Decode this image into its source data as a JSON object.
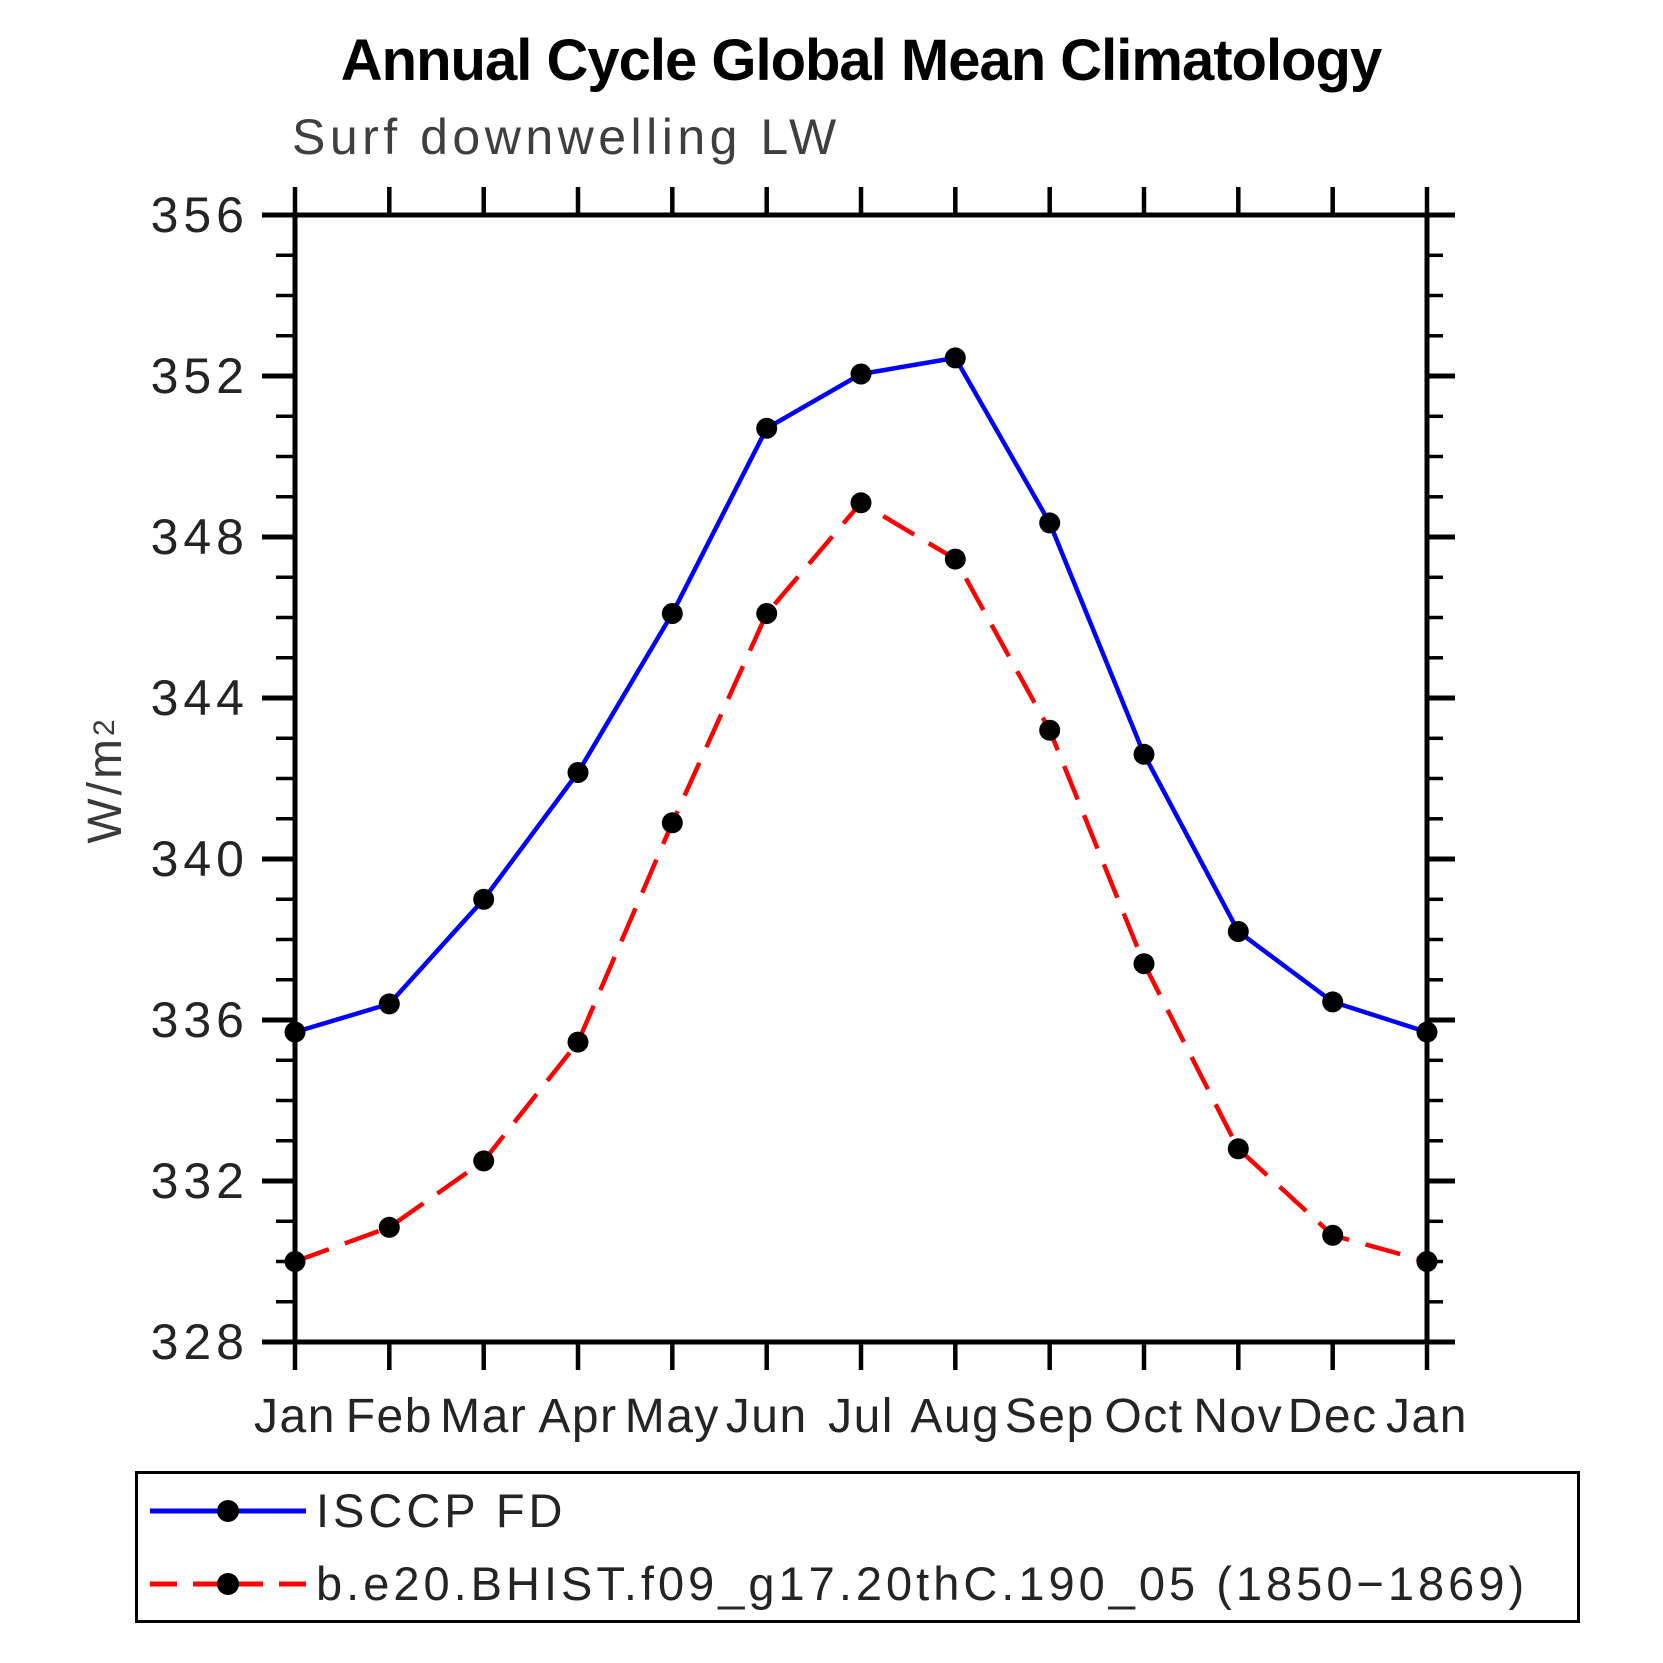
{
  "title": "Annual Cycle Global Mean Climatology",
  "subtitle": "Surf downwelling LW",
  "y_axis": {
    "label": "W/m",
    "label_superscript": "2",
    "min": 328,
    "max": 356,
    "major_ticks": [
      328,
      332,
      336,
      340,
      344,
      348,
      352,
      356
    ],
    "minor_tick_step": 1
  },
  "x_axis": {
    "categories": [
      "Jan",
      "Feb",
      "Mar",
      "Apr",
      "May",
      "Jun",
      "Jul",
      "Aug",
      "Sep",
      "Oct",
      "Nov",
      "Dec",
      "Jan"
    ]
  },
  "chart_data": {
    "type": "line",
    "title": "Annual Cycle Global Mean Climatology",
    "subtitle": "Surf downwelling LW",
    "xlabel": "",
    "ylabel": "W/m2",
    "ylim": [
      328,
      356
    ],
    "ytick_major_step": 4,
    "ytick_minor_step": 1,
    "grid": false,
    "legend_position": "bottom",
    "categories": [
      "Jan",
      "Feb",
      "Mar",
      "Apr",
      "May",
      "Jun",
      "Jul",
      "Aug",
      "Sep",
      "Oct",
      "Nov",
      "Dec",
      "Jan"
    ],
    "series": [
      {
        "name": "ISCCP FD",
        "color": "#0000ff",
        "line_style": "solid",
        "dash_pattern": "",
        "legend_dash": "",
        "marker": "circle",
        "marker_color": "#000000",
        "values": [
          335.7,
          336.4,
          339.0,
          342.15,
          346.1,
          350.7,
          352.05,
          352.45,
          348.35,
          342.6,
          338.2,
          336.45,
          335.7
        ]
      },
      {
        "name": "b.e20.BHIST.f09_g17.20thC.190_05 (1850−1869)",
        "color": "#ff0000",
        "line_style": "dashed",
        "dash_pattern": "36 17",
        "legend_dash": "27 16",
        "marker": "circle",
        "marker_color": "#000000",
        "values": [
          330.0,
          330.85,
          332.5,
          335.45,
          340.9,
          346.1,
          348.85,
          347.45,
          343.2,
          337.4,
          332.8,
          330.65,
          330.0
        ]
      }
    ]
  }
}
